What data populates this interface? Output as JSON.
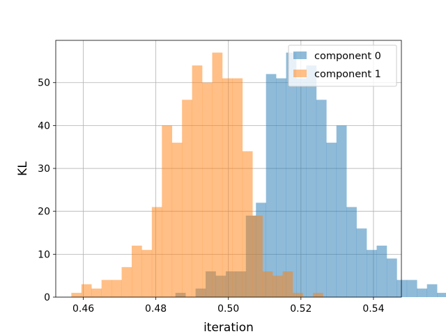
{
  "chart_data": {
    "type": "histogram",
    "xlabel": "iteration",
    "ylabel": "KL",
    "xlim": [
      0.4524,
      0.5477
    ],
    "ylim": [
      0,
      59.85
    ],
    "xticks": [
      0.46,
      0.48,
      0.5,
      0.52,
      0.54
    ],
    "xtick_labels": [
      "0.46",
      "0.48",
      "0.50",
      "0.52",
      "0.54"
    ],
    "yticks": [
      0,
      10,
      20,
      30,
      40,
      50
    ],
    "ytick_labels": [
      "0",
      "10",
      "20",
      "30",
      "40",
      "50"
    ],
    "grid": true,
    "legend_position": "top-right",
    "series": [
      {
        "name": "component 0",
        "color": "#1f77b4",
        "alpha": 0.5,
        "bin_start": 0.4854,
        "bin_width": 0.002774,
        "counts": [
          1,
          0,
          2,
          6,
          5,
          6,
          6,
          19,
          22,
          52,
          51,
          57,
          51,
          54,
          46,
          36,
          40,
          21,
          16,
          11,
          12,
          9,
          4,
          4,
          2,
          3,
          1
        ]
      },
      {
        "name": "component 1",
        "color": "#ff7f0e",
        "alpha": 0.5,
        "bin_start": 0.4567,
        "bin_width": 0.002774,
        "counts": [
          1,
          3,
          2,
          4,
          4,
          7,
          12,
          11,
          21,
          40,
          36,
          46,
          54,
          50,
          57,
          51,
          51,
          34,
          19,
          6,
          5,
          6,
          1,
          0,
          1
        ]
      }
    ]
  }
}
